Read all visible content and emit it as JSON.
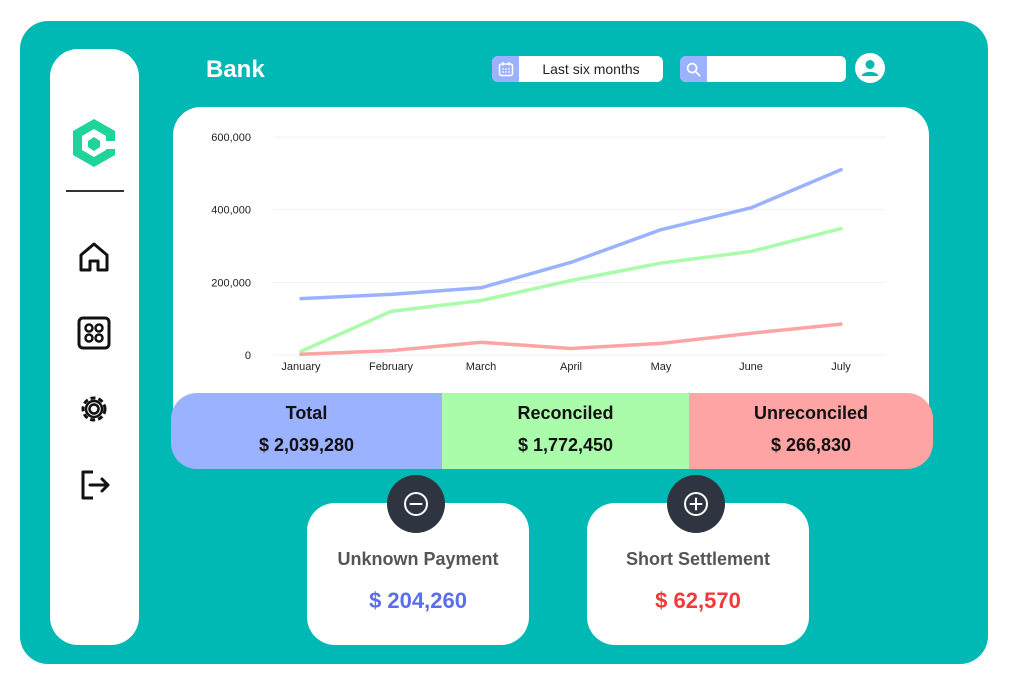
{
  "header": {
    "title": "Bank",
    "date_range_label": "Last six months",
    "search_placeholder": ""
  },
  "icons": {
    "logo": "logo-icon",
    "nav": [
      "home-icon",
      "dashboard-grid-icon",
      "gear-icon",
      "logout-icon"
    ],
    "calendar": "calendar-icon",
    "search": "search-icon",
    "user": "user-icon",
    "minus": "minus-circle-icon",
    "plus": "plus-circle-icon"
  },
  "colors": {
    "background": "#00b9b5",
    "total": "#9ab2ff",
    "reconciled": "#aafcab",
    "unreconciled": "#fea4a4",
    "unknown_value": "#5b6ef0",
    "short_value": "#f03a3a"
  },
  "chart_data": {
    "type": "line",
    "categories": [
      "January",
      "February",
      "March",
      "April",
      "May",
      "June",
      "July"
    ],
    "ylim": [
      0,
      600000
    ],
    "yticks": [
      "600,000",
      "400,000",
      "200,000",
      "0"
    ],
    "ytick_values": [
      600000,
      400000,
      200000,
      0
    ],
    "grid": true,
    "series": [
      {
        "color": "#9ab2ff",
        "values": [
          155000,
          167000,
          185000,
          255000,
          345000,
          405000,
          510000
        ]
      },
      {
        "color": "#aafcab",
        "values": [
          10000,
          120000,
          150000,
          205000,
          253000,
          285000,
          348000
        ]
      },
      {
        "color": "#fea4a4",
        "values": [
          2000,
          12000,
          35000,
          18000,
          32000,
          60000,
          85000
        ]
      }
    ]
  },
  "summary": {
    "total": {
      "label": "Total",
      "value": "$ 2,039,280"
    },
    "reconciled": {
      "label": "Reconciled",
      "value": "$ 1,772,450"
    },
    "unreconciled": {
      "label": "Unreconciled",
      "value": "$ 266,830"
    }
  },
  "cards": {
    "unknown": {
      "label": "Unknown Payment",
      "value": "$ 204,260"
    },
    "short": {
      "label": "Short Settlement",
      "value": "$ 62,570"
    }
  }
}
